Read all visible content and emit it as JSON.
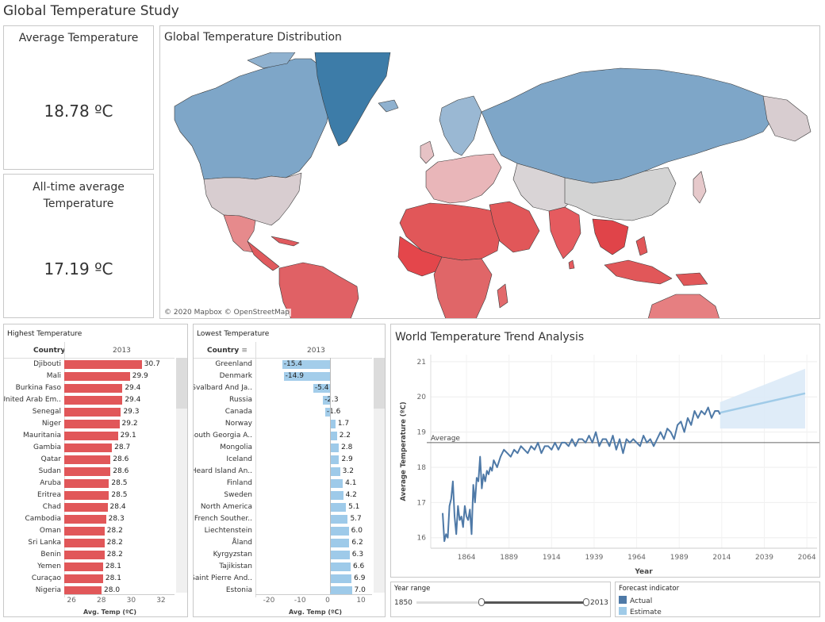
{
  "dashboard": {
    "title": "Global Temperature Study"
  },
  "kpi": {
    "average": {
      "title": "Average Temperature",
      "value": "18.78 ºC"
    },
    "alltime": {
      "title_line1": "All-time average",
      "title_line2": "Temperature",
      "value": "17.19 ºC"
    }
  },
  "map": {
    "title": "Global Temperature Distribution",
    "credit": "© 2020 Mapbox  © OpenStreetMap"
  },
  "highest": {
    "title": "Highest  Temperature",
    "column_header": "Country",
    "year_header": "2013",
    "axis_title": "Avg. Temp (ºC)",
    "axis_ticks": [
      "26",
      "28",
      "30",
      "32"
    ],
    "axis_min": 25.5,
    "axis_max": 33.0,
    "bar_color": "#e15759",
    "rows": [
      {
        "country": "Djibouti",
        "value": 30.7,
        "label": "30.7"
      },
      {
        "country": "Mali",
        "value": 29.9,
        "label": "29.9"
      },
      {
        "country": "Burkina Faso",
        "value": 29.4,
        "label": "29.4"
      },
      {
        "country": "United Arab Em..",
        "value": 29.4,
        "label": "29.4"
      },
      {
        "country": "Senegal",
        "value": 29.3,
        "label": "29.3"
      },
      {
        "country": "Niger",
        "value": 29.2,
        "label": "29.2"
      },
      {
        "country": "Mauritania",
        "value": 29.1,
        "label": "29.1"
      },
      {
        "country": "Gambia",
        "value": 28.7,
        "label": "28.7"
      },
      {
        "country": "Qatar",
        "value": 28.6,
        "label": "28.6"
      },
      {
        "country": "Sudan",
        "value": 28.6,
        "label": "28.6"
      },
      {
        "country": "Aruba",
        "value": 28.5,
        "label": "28.5"
      },
      {
        "country": "Eritrea",
        "value": 28.5,
        "label": "28.5"
      },
      {
        "country": "Chad",
        "value": 28.4,
        "label": "28.4"
      },
      {
        "country": "Cambodia",
        "value": 28.3,
        "label": "28.3"
      },
      {
        "country": "Oman",
        "value": 28.2,
        "label": "28.2"
      },
      {
        "country": "Sri Lanka",
        "value": 28.2,
        "label": "28.2"
      },
      {
        "country": "Benin",
        "value": 28.2,
        "label": "28.2"
      },
      {
        "country": "Yemen",
        "value": 28.1,
        "label": "28.1"
      },
      {
        "country": "Curaçao",
        "value": 28.1,
        "label": "28.1"
      },
      {
        "country": "Nigeria",
        "value": 28.0,
        "label": "28.0"
      }
    ]
  },
  "lowest": {
    "title": "Lowest Temperature",
    "column_header": "Country",
    "year_header": "2013",
    "axis_title": "Avg. Temp (ºC)",
    "axis_ticks": [
      "-20",
      "-10",
      "0",
      "10"
    ],
    "axis_min": -24.0,
    "axis_max": 14.0,
    "bar_color": "#9ecae9",
    "rows": [
      {
        "country": "Greenland",
        "value": -15.4,
        "label": "-15.4"
      },
      {
        "country": "Denmark",
        "value": -14.9,
        "label": "-14.9"
      },
      {
        "country": "Svalbard And Ja..",
        "value": -5.4,
        "label": "-5.4"
      },
      {
        "country": "Russia",
        "value": -2.3,
        "label": "-2.3"
      },
      {
        "country": "Canada",
        "value": -1.6,
        "label": "-1.6"
      },
      {
        "country": "Norway",
        "value": 1.7,
        "label": "1.7"
      },
      {
        "country": "South Georgia A..",
        "value": 2.2,
        "label": "2.2"
      },
      {
        "country": "Mongolia",
        "value": 2.8,
        "label": "2.8"
      },
      {
        "country": "Iceland",
        "value": 2.9,
        "label": "2.9"
      },
      {
        "country": "Heard Island An..",
        "value": 3.2,
        "label": "3.2"
      },
      {
        "country": "Finland",
        "value": 4.1,
        "label": "4.1"
      },
      {
        "country": "Sweden",
        "value": 4.2,
        "label": "4.2"
      },
      {
        "country": "North America",
        "value": 5.1,
        "label": "5.1"
      },
      {
        "country": "French Souther..",
        "value": 5.7,
        "label": "5.7"
      },
      {
        "country": "Liechtenstein",
        "value": 6.0,
        "label": "6.0"
      },
      {
        "country": "Åland",
        "value": 6.2,
        "label": "6.2"
      },
      {
        "country": "Kyrgyzstan",
        "value": 6.3,
        "label": "6.3"
      },
      {
        "country": "Tajikistan",
        "value": 6.6,
        "label": "6.6"
      },
      {
        "country": "Saint Pierre And..",
        "value": 6.9,
        "label": "6.9"
      },
      {
        "country": "Estonia",
        "value": 7.0,
        "label": "7.0"
      }
    ]
  },
  "trend": {
    "title": "World Temperature Trend Analysis",
    "average_label": "Average",
    "ylabel": "Average Temperature (ºC)",
    "xlabel": "Year"
  },
  "year_range": {
    "title": "Year range",
    "min": "1850",
    "max": "2013"
  },
  "forecast": {
    "title": "Forecast indicator",
    "items": [
      {
        "label": "Actual",
        "color": "#4e79a7"
      },
      {
        "label": "Estimate",
        "color": "#a0cbe8"
      }
    ]
  },
  "chart_data": [
    {
      "type": "line",
      "title": "World Temperature Trend Analysis",
      "xlabel": "Year",
      "ylabel": "Average Temperature (ºC)",
      "xlim": [
        1843,
        2070
      ],
      "ylim": [
        15.7,
        21.2
      ],
      "x_ticks": [
        1864,
        1889,
        1914,
        1939,
        1964,
        1989,
        2014,
        2039,
        2064
      ],
      "y_ticks": [
        16,
        17,
        18,
        19,
        20,
        21
      ],
      "reference_line": {
        "label": "Average",
        "value": 18.7
      },
      "series": [
        {
          "name": "Actual",
          "color": "#4e79a7",
          "x": [
            1850,
            1851,
            1852,
            1853,
            1854,
            1855,
            1856,
            1857,
            1858,
            1859,
            1860,
            1861,
            1862,
            1863,
            1864,
            1865,
            1866,
            1867,
            1868,
            1869,
            1870,
            1871,
            1872,
            1873,
            1874,
            1875,
            1876,
            1877,
            1878,
            1879,
            1880,
            1882,
            1884,
            1886,
            1888,
            1890,
            1892,
            1894,
            1896,
            1898,
            1900,
            1902,
            1904,
            1906,
            1908,
            1910,
            1912,
            1914,
            1916,
            1918,
            1920,
            1922,
            1924,
            1926,
            1928,
            1930,
            1932,
            1934,
            1936,
            1938,
            1940,
            1942,
            1944,
            1946,
            1948,
            1950,
            1952,
            1954,
            1956,
            1958,
            1960,
            1962,
            1964,
            1966,
            1968,
            1970,
            1972,
            1974,
            1976,
            1978,
            1980,
            1982,
            1984,
            1986,
            1988,
            1990,
            1992,
            1994,
            1996,
            1998,
            2000,
            2002,
            2004,
            2006,
            2008,
            2010,
            2012,
            2013
          ],
          "y": [
            16.7,
            15.9,
            16.1,
            16.0,
            16.9,
            17.1,
            17.6,
            16.6,
            16.1,
            16.9,
            16.5,
            16.6,
            16.3,
            16.9,
            16.6,
            16.5,
            16.8,
            16.1,
            17.5,
            17.0,
            17.7,
            17.6,
            18.3,
            17.4,
            17.8,
            17.6,
            17.9,
            17.8,
            18.0,
            17.9,
            18.2,
            18.0,
            18.3,
            18.5,
            18.4,
            18.3,
            18.5,
            18.4,
            18.6,
            18.5,
            18.4,
            18.6,
            18.5,
            18.7,
            18.4,
            18.6,
            18.6,
            18.5,
            18.7,
            18.5,
            18.7,
            18.7,
            18.6,
            18.8,
            18.6,
            18.8,
            18.8,
            18.7,
            18.9,
            18.7,
            19.0,
            18.6,
            18.8,
            18.8,
            18.6,
            18.9,
            18.5,
            18.8,
            18.4,
            18.8,
            18.7,
            18.8,
            18.7,
            18.6,
            18.9,
            18.7,
            18.8,
            18.6,
            18.8,
            19.0,
            18.8,
            19.1,
            19.0,
            18.8,
            19.2,
            19.3,
            19.0,
            19.4,
            19.2,
            19.6,
            19.4,
            19.6,
            19.5,
            19.7,
            19.4,
            19.6,
            19.6,
            19.5
          ]
        },
        {
          "name": "Estimate",
          "color": "#a0cbe8",
          "x": [
            2013,
            2063
          ],
          "y": [
            19.55,
            20.1
          ],
          "band_upper": [
            19.85,
            20.8
          ],
          "band_lower": [
            19.1,
            19.1
          ]
        }
      ]
    }
  ]
}
